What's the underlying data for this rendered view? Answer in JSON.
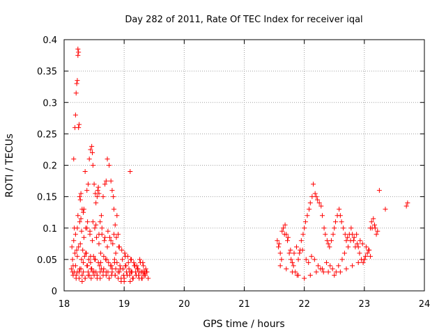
{
  "chart_data": {
    "type": "scatter",
    "title": "Day 282 of 2011, Rate Of TEC Index for receiver iqal",
    "xlabel": "GPS time / hours",
    "ylabel": "ROTI / TECUs",
    "xlim": [
      18,
      24
    ],
    "ylim": [
      0,
      0.4
    ],
    "xticks": [
      "18",
      "19",
      "20",
      "21",
      "22",
      "23",
      "24"
    ],
    "yticks": [
      "0",
      "0.05",
      "0.1",
      "0.15",
      "0.2",
      "0.25",
      "0.3",
      "0.35",
      "0.4"
    ],
    "grid": true,
    "marker": "+",
    "color": "#ff0000",
    "series": [
      {
        "x": [
          18.16,
          18.18,
          18.19,
          18.2,
          18.21,
          18.22,
          18.23,
          18.23,
          18.24,
          18.24,
          18.25,
          18.26,
          18.27,
          18.28,
          18.3,
          18.32,
          18.35,
          18.38,
          18.4,
          18.42,
          18.44,
          18.46,
          18.47,
          18.48,
          18.5,
          18.52,
          18.53,
          18.55,
          18.56,
          18.57,
          18.58,
          18.6,
          18.62,
          18.65,
          18.68,
          18.7,
          18.72,
          18.75,
          18.78,
          18.8,
          18.82,
          18.83,
          18.85,
          18.88,
          18.9,
          19.1,
          18.12,
          18.14,
          18.15,
          18.17,
          18.2,
          18.22,
          18.25,
          18.28,
          18.3,
          18.32,
          18.35,
          18.38,
          18.4,
          18.42,
          18.45,
          18.48,
          18.5,
          18.55,
          18.6,
          18.62,
          18.65,
          18.7,
          18.75,
          18.8,
          18.85,
          18.9,
          18.95,
          19.0,
          19.05,
          19.1,
          19.15,
          19.2,
          19.25,
          19.3,
          19.35,
          18.13,
          18.16,
          18.19,
          18.22,
          18.26,
          18.29,
          18.33,
          18.36,
          18.39,
          18.43,
          18.47,
          18.51,
          18.54,
          18.58,
          18.63,
          18.67,
          18.72,
          18.76,
          18.81,
          18.86,
          18.92,
          18.97,
          19.02,
          19.07,
          19.12,
          19.17,
          19.22,
          19.27,
          19.32,
          19.37,
          18.14,
          18.18,
          18.21,
          18.24,
          18.27,
          18.31,
          18.34,
          18.37,
          18.41,
          18.44,
          18.49,
          18.52,
          18.57,
          18.61,
          18.66,
          18.71,
          18.74,
          18.79,
          18.84,
          18.88,
          18.93,
          18.98,
          19.03,
          19.08,
          19.13,
          19.18,
          19.23,
          19.28,
          19.33,
          19.38,
          18.15,
          18.2,
          18.25,
          18.3,
          18.35,
          18.4,
          18.45,
          18.5,
          18.55,
          18.6,
          18.65,
          18.7,
          18.75,
          18.8,
          18.85,
          18.9,
          18.95,
          19.0,
          19.05,
          19.1,
          19.15,
          19.2,
          19.25,
          19.3,
          19.35,
          19.4,
          18.17,
          18.23,
          18.28,
          18.33,
          18.38,
          18.43,
          18.48,
          18.53,
          18.58,
          18.63,
          18.68,
          18.73,
          18.78,
          18.83,
          18.87,
          18.91,
          18.96,
          19.01,
          19.06,
          19.11,
          19.16,
          19.21,
          19.26,
          19.31,
          19.36,
          18.19,
          18.26,
          18.32,
          18.39,
          18.46,
          18.53,
          18.59,
          18.66,
          18.73,
          18.79,
          18.86,
          18.92,
          18.99,
          19.04,
          19.09,
          19.14,
          19.19,
          19.24,
          19.29,
          19.34,
          18.22,
          18.29,
          18.36,
          18.44,
          18.51,
          18.61,
          18.69,
          18.77,
          18.84,
          18.94,
          19.02,
          19.12,
          19.22,
          19.32,
          21.55,
          21.57,
          21.6,
          21.62,
          21.65,
          21.68,
          21.7,
          21.72,
          21.75,
          21.78,
          21.8,
          21.82,
          21.85,
          21.88,
          21.9,
          21.93,
          21.95,
          21.98,
          22.0,
          22.02,
          22.05,
          22.08,
          22.1,
          22.13,
          22.15,
          22.18,
          22.2,
          22.22,
          22.25,
          22.28,
          22.3,
          22.33,
          22.35,
          22.38,
          22.4,
          22.42,
          22.45,
          22.48,
          22.5,
          22.52,
          22.55,
          22.58,
          22.6,
          22.62,
          22.65,
          22.68,
          22.7,
          22.72,
          22.75,
          22.78,
          22.8,
          22.82,
          22.85,
          22.88,
          22.9,
          22.92,
          22.95,
          22.98,
          23.0,
          23.02,
          23.05,
          23.08,
          23.1,
          23.12,
          23.15,
          23.18,
          23.2,
          23.22,
          23.25,
          23.35,
          23.7,
          23.72,
          21.58,
          21.63,
          21.67,
          21.73,
          21.77,
          21.83,
          21.87,
          21.92,
          21.97,
          22.03,
          22.07,
          22.12,
          22.17,
          22.23,
          22.27,
          22.32,
          22.37,
          22.43,
          22.47,
          22.53,
          22.57,
          22.63,
          22.67,
          22.73,
          22.77,
          22.83,
          22.87,
          22.93,
          22.97,
          23.03,
          23.07,
          23.13,
          23.17,
          21.6,
          21.7,
          21.8,
          21.9,
          22.0,
          22.1,
          22.2,
          22.3,
          22.4,
          22.5,
          22.6,
          22.7,
          22.8,
          22.9,
          23.0,
          23.1
        ],
        "y": [
          0.21,
          0.26,
          0.28,
          0.315,
          0.33,
          0.335,
          0.375,
          0.385,
          0.38,
          0.26,
          0.265,
          0.15,
          0.145,
          0.155,
          0.13,
          0.125,
          0.19,
          0.16,
          0.17,
          0.21,
          0.225,
          0.23,
          0.22,
          0.2,
          0.17,
          0.155,
          0.14,
          0.15,
          0.16,
          0.165,
          0.155,
          0.11,
          0.12,
          0.15,
          0.17,
          0.175,
          0.21,
          0.2,
          0.175,
          0.16,
          0.15,
          0.13,
          0.105,
          0.12,
          0.09,
          0.19,
          0.035,
          0.03,
          0.04,
          0.03,
          0.025,
          0.03,
          0.02,
          0.035,
          0.025,
          0.03,
          0.02,
          0.04,
          0.03,
          0.025,
          0.035,
          0.03,
          0.025,
          0.02,
          0.03,
          0.035,
          0.025,
          0.03,
          0.02,
          0.035,
          0.025,
          0.03,
          0.02,
          0.015,
          0.025,
          0.03,
          0.02,
          0.025,
          0.03,
          0.02,
          0.025,
          0.07,
          0.08,
          0.09,
          0.1,
          0.11,
          0.095,
          0.085,
          0.1,
          0.11,
          0.09,
          0.08,
          0.1,
          0.085,
          0.075,
          0.09,
          0.08,
          0.07,
          0.085,
          0.075,
          0.06,
          0.07,
          0.05,
          0.055,
          0.045,
          0.05,
          0.04,
          0.035,
          0.045,
          0.04,
          0.03,
          0.05,
          0.06,
          0.065,
          0.07,
          0.075,
          0.065,
          0.055,
          0.06,
          0.05,
          0.045,
          0.055,
          0.05,
          0.045,
          0.06,
          0.055,
          0.05,
          0.045,
          0.04,
          0.05,
          0.045,
          0.04,
          0.035,
          0.04,
          0.035,
          0.03,
          0.04,
          0.035,
          0.03,
          0.025,
          0.03,
          0.025,
          0.02,
          0.03,
          0.015,
          0.02,
          0.025,
          0.02,
          0.03,
          0.025,
          0.02,
          0.03,
          0.025,
          0.02,
          0.03,
          0.025,
          0.02,
          0.015,
          0.02,
          0.025,
          0.015,
          0.02,
          0.025,
          0.02,
          0.03,
          0.025,
          0.02,
          0.1,
          0.12,
          0.115,
          0.13,
          0.1,
          0.095,
          0.11,
          0.105,
          0.09,
          0.1,
          0.085,
          0.095,
          0.08,
          0.09,
          0.085,
          0.07,
          0.065,
          0.06,
          0.055,
          0.05,
          0.045,
          0.04,
          0.05,
          0.045,
          0.035,
          0.04,
          0.035,
          0.045,
          0.04,
          0.035,
          0.03,
          0.04,
          0.035,
          0.03,
          0.025,
          0.035,
          0.03,
          0.025,
          0.03,
          0.025,
          0.02,
          0.03,
          0.025,
          0.02,
          0.03,
          0.055,
          0.05,
          0.06,
          0.055,
          0.05,
          0.045,
          0.05,
          0.04,
          0.045,
          0.035,
          0.04,
          0.03,
          0.035,
          0.03,
          0.08,
          0.07,
          0.06,
          0.05,
          0.1,
          0.105,
          0.09,
          0.08,
          0.06,
          0.05,
          0.045,
          0.04,
          0.03,
          0.025,
          0.05,
          0.065,
          0.08,
          0.09,
          0.1,
          0.11,
          0.12,
          0.13,
          0.14,
          0.15,
          0.17,
          0.155,
          0.15,
          0.145,
          0.14,
          0.135,
          0.12,
          0.1,
          0.09,
          0.08,
          0.075,
          0.07,
          0.08,
          0.09,
          0.1,
          0.11,
          0.12,
          0.13,
          0.12,
          0.11,
          0.1,
          0.09,
          0.08,
          0.085,
          0.09,
          0.1,
          0.09,
          0.08,
          0.07,
          0.075,
          0.07,
          0.06,
          0.05,
          0.045,
          0.05,
          0.055,
          0.06,
          0.065,
          0.1,
          0.11,
          0.115,
          0.1,
          0.09,
          0.095,
          0.16,
          0.13,
          0.135,
          0.14,
          0.075,
          0.095,
          0.09,
          0.085,
          0.065,
          0.06,
          0.07,
          0.06,
          0.065,
          0.05,
          0.045,
          0.055,
          0.05,
          0.04,
          0.035,
          0.03,
          0.045,
          0.04,
          0.035,
          0.03,
          0.04,
          0.05,
          0.06,
          0.07,
          0.08,
          0.085,
          0.09,
          0.08,
          0.075,
          0.07,
          0.065,
          0.1,
          0.105,
          0.04,
          0.035,
          0.03,
          0.025,
          0.02,
          0.025,
          0.03,
          0.035,
          0.03,
          0.025,
          0.03,
          0.035,
          0.04,
          0.045,
          0.05,
          0.055
        ]
      }
    ]
  }
}
